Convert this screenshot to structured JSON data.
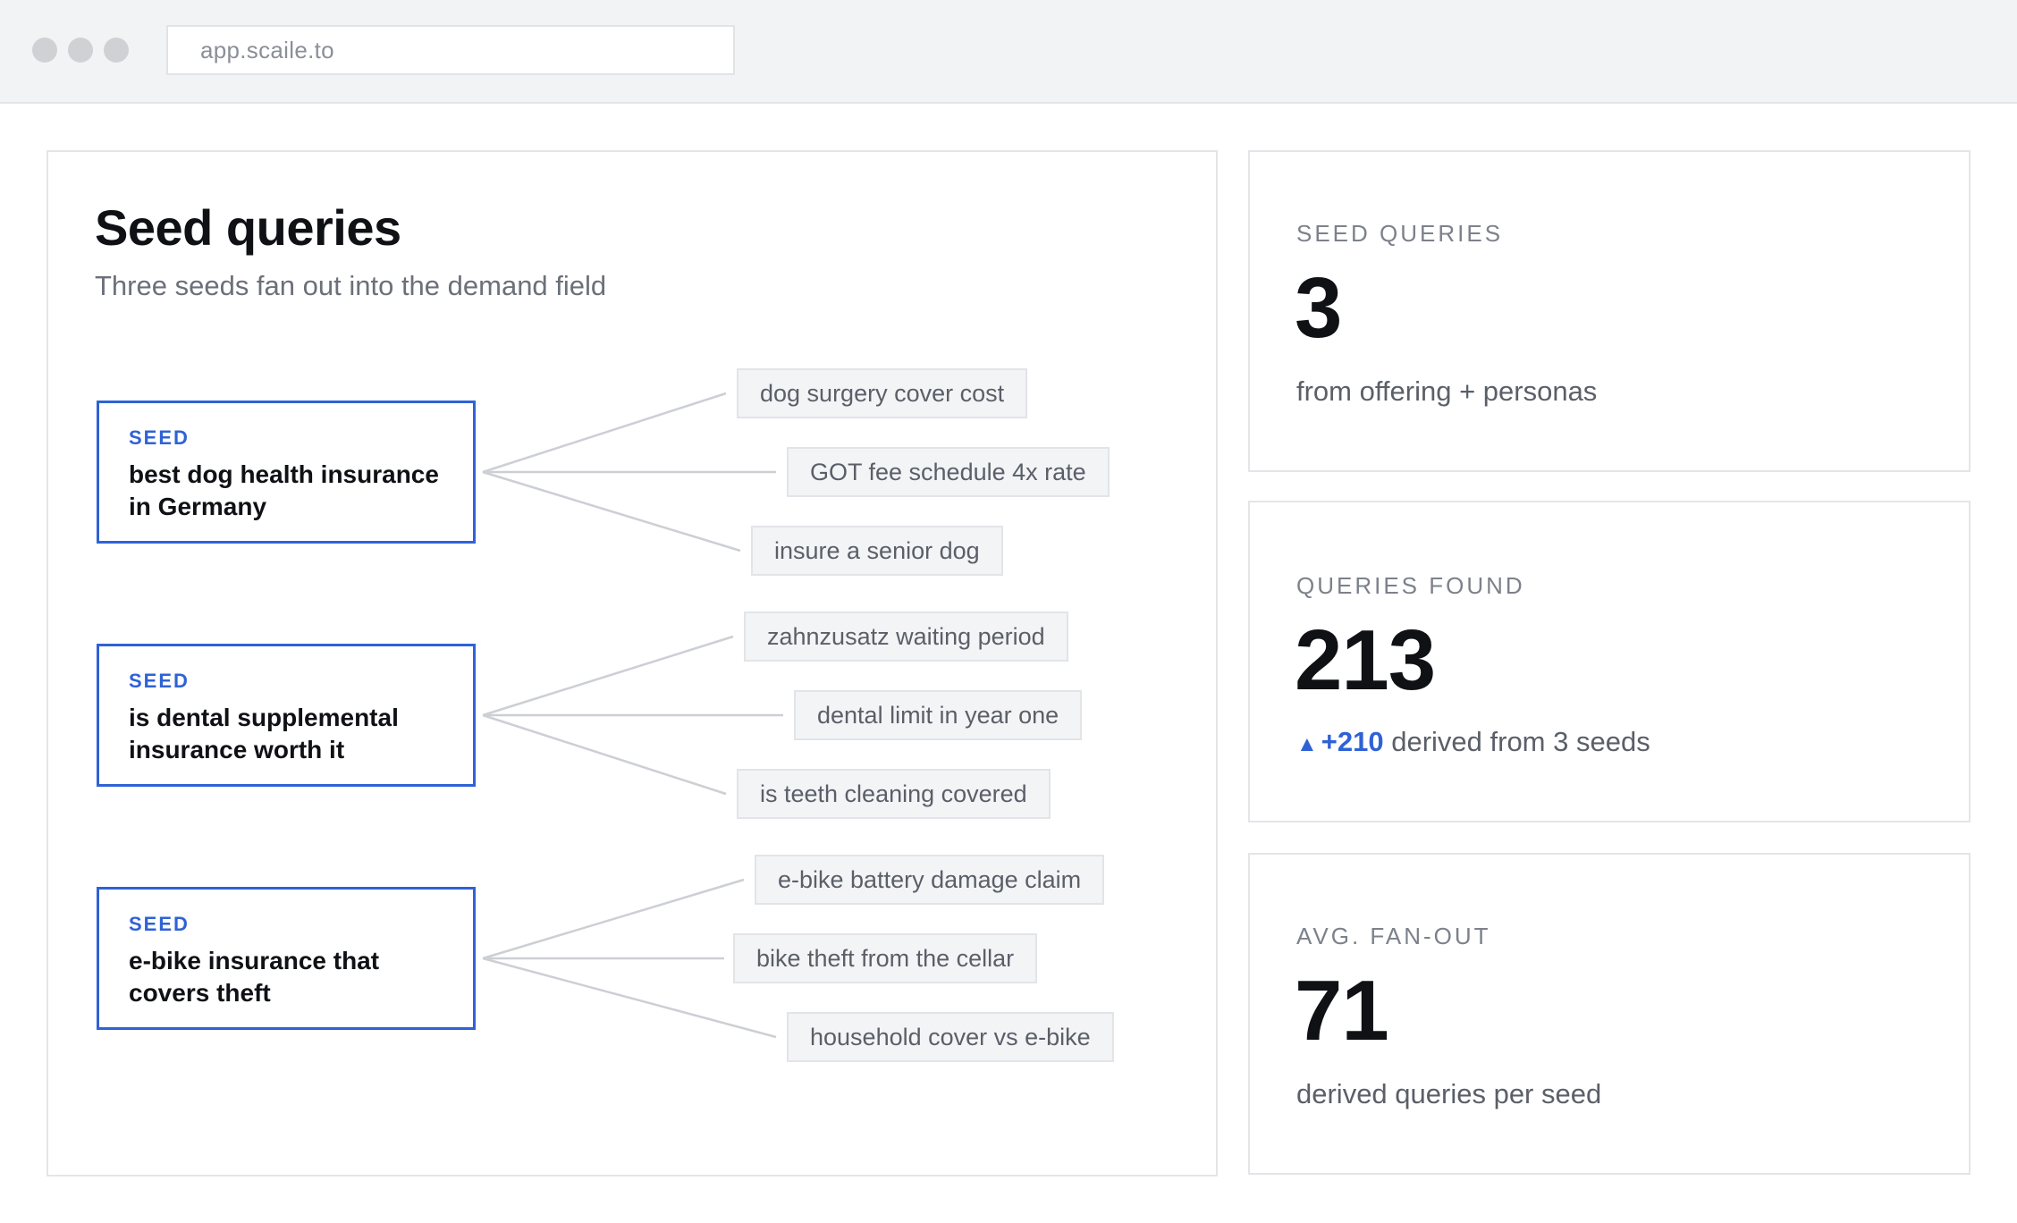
{
  "browser": {
    "url": "app.scaile.to"
  },
  "panel": {
    "title": "Seed queries",
    "subtitle": "Three seeds fan out into the demand field"
  },
  "seeds": [
    {
      "tag": "SEED",
      "text": "best dog health insurance in Germany",
      "derived": [
        "dog surgery cover cost",
        "GOT fee schedule 4x rate",
        "insure a senior dog"
      ]
    },
    {
      "tag": "SEED",
      "text": "is dental supplemental insurance worth it",
      "derived": [
        "zahnzusatz waiting period",
        "dental limit in year one",
        "is teeth cleaning covered"
      ]
    },
    {
      "tag": "SEED",
      "text": "e-bike insurance that covers theft",
      "derived": [
        "e-bike battery damage claim",
        "bike theft from the cellar",
        "household cover vs e-bike"
      ]
    }
  ],
  "stats": {
    "seed_queries": {
      "label": "SEED QUERIES",
      "value": "3",
      "caption": "from offering + personas"
    },
    "queries_found": {
      "label": "QUERIES FOUND",
      "value": "213",
      "delta_arrow": "▲",
      "delta": "+210",
      "caption": "derived from 3 seeds"
    },
    "avg_fan_out": {
      "label": "AVG. FAN-OUT",
      "value": "71",
      "caption": "derived queries per seed"
    }
  },
  "colors": {
    "accent": "#2f62d6",
    "border": "#e3e5e8",
    "chip_bg": "#f3f4f6",
    "muted_text": "#6b7079"
  }
}
